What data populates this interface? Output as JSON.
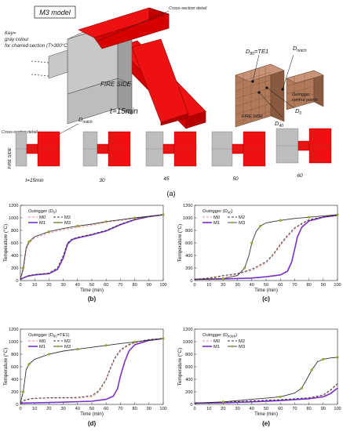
{
  "top": {
    "model_label": "M3 model",
    "key_lines": [
      "Key=",
      "gray colour",
      "for charred section (T>300°C)"
    ],
    "cross_section_top": "Cross-section detail",
    "fire_side_main": "FIRE SIDE",
    "time_main": "t=15min",
    "d_notch_right": "D",
    "d_notch_right_sub": "notch",
    "d80_label": "D",
    "d80_sub": "80",
    "d80_tail": "=TE1",
    "d0_label": "D",
    "d0_sub": "0",
    "d40_label": "D",
    "d40_sub": "40",
    "outrigger_cp": [
      "Outrigger",
      "control points"
    ],
    "fire_side_small": "FIRE SIDE",
    "d_notch_mid": "D",
    "d_notch_mid_sub": "notch",
    "cross_section_left": "Cross-section detail",
    "fire_side_vertical": "FIRE SIDE",
    "section_times": [
      "t=15min",
      "30",
      "45",
      "50",
      "60"
    ],
    "panel_label": "(a)"
  },
  "colors": {
    "M0": "#e8a0a0",
    "M1": "#7b2fc9",
    "M2": "#333333",
    "M3": "#a0ad2a",
    "red": "#ee1111",
    "gray": "#bdbdbd"
  },
  "chart_data": [
    {
      "type": "line",
      "panel": "(b)",
      "legend_title": "Outrigger (D",
      "legend_title_sub": "0",
      "legend_title_tail": ")",
      "xlabel": "Time  (min)",
      "ylabel": "Temperature  (°C)",
      "xlim": [
        0,
        100
      ],
      "ylim": [
        0,
        1200
      ],
      "xticks": [
        0,
        10,
        20,
        30,
        40,
        50,
        60,
        70,
        80,
        90,
        100
      ],
      "yticks": [
        0,
        200,
        400,
        600,
        800,
        1000,
        1200
      ],
      "legend": [
        "M0",
        "M2",
        "M1",
        "M3"
      ],
      "series": [
        {
          "name": "M0",
          "points": [
            [
              0,
              20
            ],
            [
              2,
              150
            ],
            [
              4,
              480
            ],
            [
              6,
              600
            ],
            [
              10,
              680
            ],
            [
              20,
              760
            ],
            [
              30,
              810
            ],
            [
              40,
              850
            ],
            [
              50,
              880
            ],
            [
              60,
              930
            ],
            [
              70,
              960
            ],
            [
              80,
              990
            ],
            [
              90,
              1020
            ],
            [
              100,
              1050
            ]
          ]
        },
        {
          "name": "M1",
          "points": [
            [
              0,
              20
            ],
            [
              2,
              40
            ],
            [
              5,
              70
            ],
            [
              10,
              90
            ],
            [
              20,
              110
            ],
            [
              26,
              180
            ],
            [
              30,
              360
            ],
            [
              33,
              580
            ],
            [
              36,
              650
            ],
            [
              40,
              680
            ],
            [
              50,
              730
            ],
            [
              60,
              790
            ],
            [
              70,
              890
            ],
            [
              80,
              970
            ],
            [
              90,
              1020
            ],
            [
              100,
              1050
            ]
          ]
        },
        {
          "name": "M2",
          "points": [
            [
              0,
              20
            ],
            [
              2,
              40
            ],
            [
              5,
              75
            ],
            [
              10,
              95
            ],
            [
              20,
              120
            ],
            [
              26,
              200
            ],
            [
              30,
              400
            ],
            [
              33,
              600
            ],
            [
              36,
              660
            ],
            [
              40,
              690
            ],
            [
              50,
              740
            ],
            [
              60,
              800
            ],
            [
              70,
              900
            ],
            [
              80,
              975
            ],
            [
              90,
              1020
            ],
            [
              100,
              1050
            ]
          ]
        },
        {
          "name": "M3",
          "points": [
            [
              0,
              20
            ],
            [
              2,
              200
            ],
            [
              4,
              520
            ],
            [
              6,
              620
            ],
            [
              10,
              700
            ],
            [
              20,
              780
            ],
            [
              30,
              830
            ],
            [
              40,
              870
            ],
            [
              50,
              900
            ],
            [
              60,
              940
            ],
            [
              70,
              970
            ],
            [
              80,
              1000
            ],
            [
              90,
              1025
            ],
            [
              100,
              1050
            ]
          ]
        }
      ]
    },
    {
      "type": "line",
      "panel": "(c)",
      "legend_title": "Outrigger (D",
      "legend_title_sub": "40",
      "legend_title_tail": ")",
      "xlabel": "Time  (min)",
      "ylabel": "Temperature  (°C)",
      "xlim": [
        0,
        100
      ],
      "ylim": [
        0,
        1200
      ],
      "xticks": [
        0,
        10,
        20,
        30,
        40,
        50,
        60,
        70,
        80,
        90,
        100
      ],
      "yticks": [
        0,
        200,
        400,
        600,
        800,
        1000,
        1200
      ],
      "legend": [
        "M0",
        "M2",
        "M1",
        "M3"
      ],
      "series": [
        {
          "name": "M0",
          "points": [
            [
              0,
              20
            ],
            [
              10,
              30
            ],
            [
              20,
              60
            ],
            [
              30,
              100
            ],
            [
              40,
              160
            ],
            [
              50,
              280
            ],
            [
              55,
              400
            ],
            [
              60,
              560
            ],
            [
              65,
              700
            ],
            [
              70,
              820
            ],
            [
              75,
              900
            ],
            [
              80,
              960
            ],
            [
              90,
              1010
            ],
            [
              100,
              1040
            ]
          ]
        },
        {
          "name": "M1",
          "points": [
            [
              0,
              20
            ],
            [
              20,
              25
            ],
            [
              40,
              40
            ],
            [
              50,
              60
            ],
            [
              60,
              90
            ],
            [
              65,
              150
            ],
            [
              68,
              300
            ],
            [
              70,
              500
            ],
            [
              72,
              700
            ],
            [
              75,
              850
            ],
            [
              80,
              950
            ],
            [
              90,
              1010
            ],
            [
              100,
              1040
            ]
          ]
        },
        {
          "name": "M2",
          "points": [
            [
              0,
              20
            ],
            [
              10,
              40
            ],
            [
              20,
              80
            ],
            [
              30,
              110
            ],
            [
              40,
              180
            ],
            [
              50,
              300
            ],
            [
              55,
              420
            ],
            [
              60,
              580
            ],
            [
              65,
              720
            ],
            [
              70,
              840
            ],
            [
              75,
              910
            ],
            [
              80,
              970
            ],
            [
              90,
              1015
            ],
            [
              100,
              1045
            ]
          ]
        },
        {
          "name": "M3",
          "points": [
            [
              0,
              20
            ],
            [
              20,
              30
            ],
            [
              30,
              80
            ],
            [
              35,
              200
            ],
            [
              38,
              400
            ],
            [
              40,
              600
            ],
            [
              43,
              780
            ],
            [
              46,
              870
            ],
            [
              50,
              920
            ],
            [
              60,
              960
            ],
            [
              70,
              990
            ],
            [
              80,
              1010
            ],
            [
              90,
              1030
            ],
            [
              100,
              1050
            ]
          ]
        }
      ]
    },
    {
      "type": "line",
      "panel": "(d)",
      "legend_title": "Outrigger (D",
      "legend_title_sub": "80",
      "legend_title_tail": "=TE1)",
      "xlabel": "Time  (min)",
      "ylabel": "Temperature  (°C)",
      "xlim": [
        0,
        100
      ],
      "ylim": [
        0,
        1200
      ],
      "xticks": [
        0,
        10,
        20,
        30,
        40,
        50,
        60,
        70,
        80,
        90,
        100
      ],
      "yticks": [
        0,
        200,
        400,
        600,
        800,
        1000,
        1200
      ],
      "legend": [
        "M0",
        "M2",
        "M1",
        "M3"
      ],
      "series": [
        {
          "name": "M0",
          "points": [
            [
              0,
              20
            ],
            [
              3,
              60
            ],
            [
              8,
              90
            ],
            [
              20,
              100
            ],
            [
              40,
              100
            ],
            [
              50,
              120
            ],
            [
              55,
              200
            ],
            [
              60,
              380
            ],
            [
              63,
              560
            ],
            [
              66,
              720
            ],
            [
              70,
              850
            ],
            [
              75,
              930
            ],
            [
              80,
              980
            ],
            [
              90,
              1030
            ],
            [
              100,
              1050
            ]
          ]
        },
        {
          "name": "M1",
          "points": [
            [
              0,
              20
            ],
            [
              10,
              25
            ],
            [
              30,
              35
            ],
            [
              50,
              50
            ],
            [
              60,
              80
            ],
            [
              65,
              130
            ],
            [
              68,
              250
            ],
            [
              70,
              450
            ],
            [
              73,
              680
            ],
            [
              76,
              850
            ],
            [
              80,
              950
            ],
            [
              90,
              1020
            ],
            [
              100,
              1050
            ]
          ]
        },
        {
          "name": "M2",
          "points": [
            [
              0,
              20
            ],
            [
              3,
              70
            ],
            [
              8,
              95
            ],
            [
              20,
              105
            ],
            [
              40,
              110
            ],
            [
              50,
              140
            ],
            [
              55,
              220
            ],
            [
              60,
              400
            ],
            [
              63,
              580
            ],
            [
              66,
              740
            ],
            [
              70,
              870
            ],
            [
              75,
              945
            ],
            [
              80,
              990
            ],
            [
              90,
              1035
            ],
            [
              100,
              1050
            ]
          ]
        },
        {
          "name": "M3",
          "points": [
            [
              0,
              20
            ],
            [
              2,
              200
            ],
            [
              4,
              550
            ],
            [
              6,
              640
            ],
            [
              10,
              720
            ],
            [
              20,
              800
            ],
            [
              30,
              850
            ],
            [
              40,
              880
            ],
            [
              50,
              910
            ],
            [
              60,
              940
            ],
            [
              70,
              970
            ],
            [
              80,
              995
            ],
            [
              90,
              1025
            ],
            [
              100,
              1050
            ]
          ]
        }
      ]
    },
    {
      "type": "line",
      "panel": "(e)",
      "legend_title": "Outrigger (D",
      "legend_title_sub": "notch",
      "legend_title_tail": ")",
      "xlabel": "Time  (min)",
      "ylabel": "Temperature  (°C)",
      "xlim": [
        0,
        100
      ],
      "ylim": [
        0,
        1200
      ],
      "xticks": [
        0,
        10,
        20,
        30,
        40,
        50,
        60,
        70,
        80,
        90,
        100
      ],
      "yticks": [
        0,
        200,
        400,
        600,
        800,
        1000,
        1200
      ],
      "legend": [
        "M0",
        "M2",
        "M1",
        "M3"
      ],
      "series": [
        {
          "name": "M0",
          "points": [
            [
              0,
              20
            ],
            [
              20,
              30
            ],
            [
              40,
              50
            ],
            [
              60,
              70
            ],
            [
              80,
              100
            ],
            [
              90,
              140
            ],
            [
              95,
              220
            ],
            [
              100,
              320
            ]
          ]
        },
        {
          "name": "M1",
          "points": [
            [
              0,
              20
            ],
            [
              20,
              25
            ],
            [
              40,
              40
            ],
            [
              60,
              60
            ],
            [
              80,
              90
            ],
            [
              90,
              120
            ],
            [
              95,
              170
            ],
            [
              100,
              260
            ]
          ]
        },
        {
          "name": "M2",
          "points": [
            [
              0,
              20
            ],
            [
              20,
              35
            ],
            [
              40,
              55
            ],
            [
              60,
              75
            ],
            [
              80,
              105
            ],
            [
              90,
              150
            ],
            [
              95,
              230
            ],
            [
              100,
              330
            ]
          ]
        },
        {
          "name": "M3",
          "points": [
            [
              0,
              20
            ],
            [
              20,
              40
            ],
            [
              40,
              80
            ],
            [
              60,
              120
            ],
            [
              70,
              180
            ],
            [
              75,
              260
            ],
            [
              78,
              380
            ],
            [
              82,
              550
            ],
            [
              86,
              680
            ],
            [
              90,
              720
            ],
            [
              95,
              740
            ],
            [
              100,
              750
            ]
          ]
        }
      ]
    }
  ]
}
